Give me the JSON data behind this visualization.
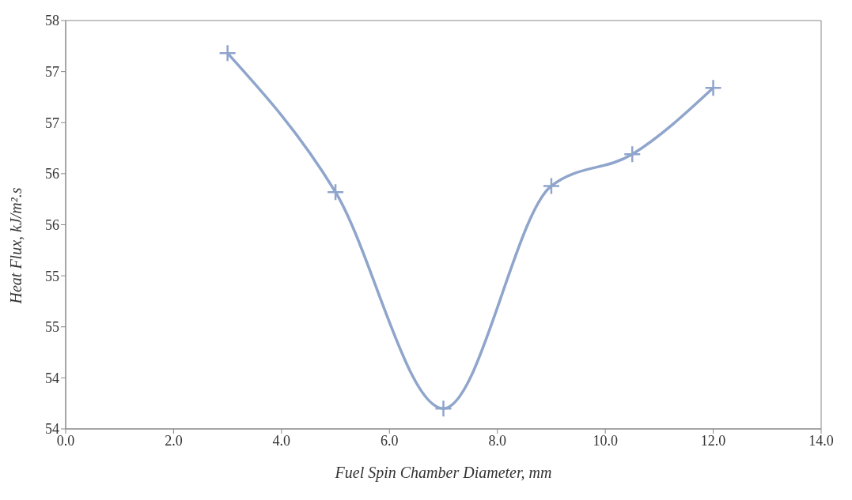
{
  "chart_data": {
    "type": "line",
    "xlabel": "Fuel Spin Chamber Diameter, mm",
    "ylabel": "Heat Flux, kJ/m².s",
    "x": [
      3,
      5,
      7,
      9,
      10.5,
      12
    ],
    "series": [
      {
        "color": "#8fa5cc",
        "values": [
          57.68,
          56.32,
          54.2,
          56.38,
          56.69,
          57.34
        ]
      }
    ],
    "xlim": [
      0,
      14
    ],
    "xticks": [
      {
        "value": 0,
        "label": "0.0"
      },
      {
        "value": 2,
        "label": "2.0"
      },
      {
        "value": 4,
        "label": "4.0"
      },
      {
        "value": 6,
        "label": "6.0"
      },
      {
        "value": 8,
        "label": "8.0"
      },
      {
        "value": 10,
        "label": "10.0"
      },
      {
        "value": 12,
        "label": "12.0"
      },
      {
        "value": 14,
        "label": "14.0"
      }
    ],
    "ylim": [
      54,
      58
    ],
    "yticks": [
      {
        "value": 54,
        "label": "54"
      },
      {
        "value": 54.5,
        "label": "54"
      },
      {
        "value": 55,
        "label": "55"
      },
      {
        "value": 55.5,
        "label": "55"
      },
      {
        "value": 56,
        "label": "56"
      },
      {
        "value": 56.5,
        "label": "56"
      },
      {
        "value": 57,
        "label": "57"
      },
      {
        "value": 57.5,
        "label": "57"
      },
      {
        "value": 58,
        "label": "58"
      }
    ],
    "grid": false,
    "legend": false,
    "marker": "cross",
    "line_style": "solid"
  }
}
